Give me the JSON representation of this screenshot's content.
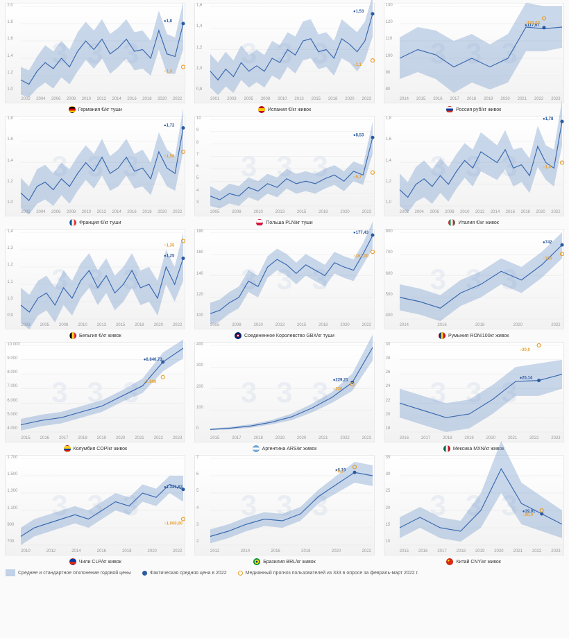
{
  "watermark": "3",
  "legend": {
    "band": "Среднее и стандартное отклонение годовой цены",
    "actual": "Фактическая средняя цена в 2022",
    "forecast": "Медианный прогноз пользователей из 333 в опросе за февраль-март 2022 г."
  },
  "colors": {
    "line": "#3b6bb0",
    "band": "#6b93c9",
    "actual": "#2b5aa0",
    "forecast": "#e8a030",
    "grid": "#e6e6e6",
    "bg_top": "#ffffff",
    "bg_bottom": "#f2f2f2"
  },
  "charts": [
    {
      "title": "Германия €/кг туши",
      "flag_css": "linear-gradient(to bottom, #000 33%, #dd0000 33%, #dd0000 66%, #ffce00 66%)",
      "y_ticks": [
        "1,0",
        "1,2",
        "1,4",
        "1,6",
        "1,8",
        "2,0"
      ],
      "ymin": 1.0,
      "ymax": 2.0,
      "x_labels": [
        "2002",
        "2004",
        "2006",
        "2008",
        "2010",
        "2012",
        "2014",
        "2016",
        "2018",
        "2020",
        "2022"
      ],
      "series": [
        1.15,
        1.1,
        1.25,
        1.35,
        1.28,
        1.4,
        1.3,
        1.48,
        1.6,
        1.5,
        1.62,
        1.45,
        1.52,
        1.62,
        1.48,
        1.5,
        1.4,
        1.72,
        1.45,
        1.42,
        1.8
      ],
      "band_lo": [
        0.98,
        0.95,
        1.05,
        1.12,
        1.05,
        1.18,
        1.1,
        1.25,
        1.38,
        1.28,
        1.4,
        1.22,
        1.3,
        1.4,
        1.26,
        1.28,
        1.2,
        1.5,
        1.22,
        1.22,
        1.5
      ],
      "band_hi": [
        1.3,
        1.26,
        1.42,
        1.55,
        1.48,
        1.6,
        1.5,
        1.7,
        1.82,
        1.72,
        1.85,
        1.68,
        1.75,
        1.85,
        1.7,
        1.72,
        1.6,
        1.95,
        1.68,
        1.64,
        2.05
      ],
      "actual": {
        "x": 20,
        "v": 1.8,
        "label": "1,8"
      },
      "forecast": {
        "x": 20,
        "v": 1.3,
        "label": "1,3"
      }
    },
    {
      "title": "Испания €/кг живок",
      "flag_css": "linear-gradient(to bottom, #c60b1e 25%, #ffc400 25%, #ffc400 75%, #c60b1e 75%)",
      "y_ticks": [
        "0,8",
        "1,0",
        "1,2",
        "1,4",
        "1,6"
      ],
      "ymin": 0.8,
      "ymax": 1.6,
      "x_labels": [
        "2001",
        "2003",
        "2005",
        "2008",
        "2010",
        "2013",
        "2015",
        "2018",
        "2020",
        "2023"
      ],
      "series": [
        1.0,
        0.92,
        1.02,
        0.95,
        1.08,
        1.0,
        1.05,
        1.0,
        1.12,
        1.08,
        1.2,
        1.15,
        1.28,
        1.3,
        1.18,
        1.2,
        1.12,
        1.3,
        1.25,
        1.18,
        1.28,
        1.53
      ],
      "band_lo": [
        0.85,
        0.78,
        0.86,
        0.8,
        0.92,
        0.85,
        0.9,
        0.85,
        0.96,
        0.92,
        1.04,
        0.98,
        1.1,
        1.12,
        1.02,
        1.04,
        0.96,
        1.12,
        1.08,
        1.0,
        1.1,
        1.32
      ],
      "band_hi": [
        1.16,
        1.08,
        1.18,
        1.1,
        1.24,
        1.15,
        1.2,
        1.15,
        1.28,
        1.24,
        1.36,
        1.32,
        1.46,
        1.48,
        1.34,
        1.36,
        1.28,
        1.48,
        1.42,
        1.36,
        1.46,
        1.7
      ],
      "actual": {
        "x": 21,
        "v": 1.53,
        "label": "1,53"
      },
      "forecast": {
        "x": 21,
        "v": 1.1,
        "label": "1,1"
      }
    },
    {
      "title": "Россия руб/кг живок",
      "flag_css": "linear-gradient(to bottom, #fff 33%, #0039a6 33%, #0039a6 66%, #d52b1e 66%)",
      "y_ticks": [
        "80",
        "90",
        "100",
        "110",
        "120",
        "130"
      ],
      "ymin": 80,
      "ymax": 130,
      "x_labels": [
        "2014",
        "2015",
        "2016",
        "2017",
        "2018",
        "2019",
        "2020",
        "2021",
        "2022",
        "2023"
      ],
      "series": [
        100,
        105,
        102,
        95,
        100,
        95,
        100,
        118,
        117,
        118
      ],
      "band_lo": [
        88,
        92,
        88,
        80,
        86,
        82,
        86,
        104,
        104,
        106
      ],
      "band_hi": [
        112,
        118,
        116,
        110,
        114,
        108,
        114,
        132,
        130,
        130
      ],
      "actual": {
        "x": 8,
        "v": 117.67,
        "label": "117,67"
      },
      "forecast": {
        "x": 8,
        "v": 123,
        "label": "123,00"
      }
    },
    {
      "title": "Франция €/кг туши",
      "flag_css": "linear-gradient(to right, #0055a4 33%, #fff 33%, #fff 66%, #ef4135 66%)",
      "y_ticks": [
        "1,0",
        "1,2",
        "1,4",
        "1,6",
        "1,8"
      ],
      "ymin": 1.0,
      "ymax": 1.8,
      "x_labels": [
        "2002",
        "2004",
        "2006",
        "2008",
        "2010",
        "2012",
        "2014",
        "2016",
        "2018",
        "2020",
        "2022"
      ],
      "series": [
        1.12,
        1.05,
        1.18,
        1.22,
        1.15,
        1.25,
        1.18,
        1.3,
        1.4,
        1.32,
        1.45,
        1.3,
        1.35,
        1.45,
        1.32,
        1.35,
        1.25,
        1.5,
        1.35,
        1.3,
        1.72
      ],
      "band_lo": [
        0.98,
        0.92,
        1.02,
        1.06,
        1.0,
        1.1,
        1.02,
        1.14,
        1.24,
        1.16,
        1.28,
        1.14,
        1.18,
        1.28,
        1.16,
        1.18,
        1.1,
        1.32,
        1.18,
        1.14,
        1.5
      ],
      "band_hi": [
        1.26,
        1.18,
        1.34,
        1.38,
        1.3,
        1.4,
        1.34,
        1.46,
        1.56,
        1.48,
        1.62,
        1.46,
        1.52,
        1.62,
        1.48,
        1.52,
        1.4,
        1.68,
        1.52,
        1.46,
        1.9
      ],
      "actual": {
        "x": 20,
        "v": 1.72,
        "label": "1,72"
      },
      "forecast": {
        "x": 20,
        "v": 1.5,
        "label": "1,50"
      }
    },
    {
      "title": "Польша PLN/кг туши",
      "flag_css": "linear-gradient(to bottom, #fff 50%, #dc143c 50%)",
      "y_ticks": [
        "3",
        "4",
        "5",
        "6",
        "7",
        "8",
        "9",
        "10"
      ],
      "ymin": 3,
      "ymax": 10,
      "x_labels": [
        "2005",
        "2008",
        "2010",
        "2013",
        "2015",
        "2018",
        "2020",
        "2023"
      ],
      "series": [
        3.8,
        3.5,
        4.0,
        3.8,
        4.5,
        4.2,
        4.8,
        4.5,
        5.2,
        4.8,
        5.0,
        4.8,
        5.2,
        5.5,
        5.0,
        5.8,
        5.5,
        8.53
      ],
      "band_lo": [
        3.0,
        2.8,
        3.2,
        3.0,
        3.7,
        3.4,
        4.0,
        3.7,
        4.4,
        4.0,
        4.2,
        4.0,
        4.4,
        4.7,
        4.2,
        5.0,
        4.7,
        7.2
      ],
      "band_hi": [
        4.6,
        4.2,
        4.8,
        4.6,
        5.3,
        5.0,
        5.6,
        5.3,
        6.0,
        5.6,
        5.8,
        5.6,
        6.0,
        6.3,
        5.8,
        6.6,
        6.3,
        9.8
      ],
      "actual": {
        "x": 17,
        "v": 8.53,
        "label": "8,53"
      },
      "forecast": {
        "x": 17,
        "v": 5.7,
        "label": "5,7"
      }
    },
    {
      "title": "Италия €/кг живок",
      "flag_css": "linear-gradient(to right, #009246 33%, #fff 33%, #fff 66%, #ce2b37 66%)",
      "y_ticks": [
        "1,0",
        "1,2",
        "1,4",
        "1,6",
        "1,8"
      ],
      "ymin": 1.0,
      "ymax": 1.8,
      "x_labels": [
        "2002",
        "2004",
        "2006",
        "2008",
        "2010",
        "2012",
        "2014",
        "2016",
        "2018",
        "2020",
        "2022"
      ],
      "series": [
        1.15,
        1.08,
        1.2,
        1.25,
        1.18,
        1.28,
        1.2,
        1.32,
        1.42,
        1.35,
        1.5,
        1.45,
        1.4,
        1.52,
        1.35,
        1.38,
        1.28,
        1.55,
        1.4,
        1.35,
        1.78
      ],
      "band_lo": [
        1.0,
        0.94,
        1.04,
        1.08,
        1.02,
        1.12,
        1.04,
        1.16,
        1.26,
        1.18,
        1.32,
        1.28,
        1.24,
        1.34,
        1.18,
        1.22,
        1.12,
        1.36,
        1.24,
        1.18,
        1.56
      ],
      "band_hi": [
        1.3,
        1.22,
        1.36,
        1.42,
        1.34,
        1.44,
        1.36,
        1.48,
        1.58,
        1.52,
        1.68,
        1.62,
        1.56,
        1.7,
        1.52,
        1.54,
        1.44,
        1.74,
        1.56,
        1.52,
        1.98
      ],
      "actual": {
        "x": 20,
        "v": 1.78,
        "label": "1,78"
      },
      "forecast": {
        "x": 20,
        "v": 1.4,
        "label": "1,4"
      }
    },
    {
      "title": "Бельгия €/кг живок",
      "flag_css": "linear-gradient(to right, #000 33%, #fdda24 33%, #fdda24 66%, #ef3340 66%)",
      "y_ticks": [
        "0,9",
        "1,0",
        "1,1",
        "1,2",
        "1,3",
        "1,4"
      ],
      "ymin": 0.9,
      "ymax": 1.4,
      "x_labels": [
        "2003",
        "2005",
        "2008",
        "2010",
        "2013",
        "2015",
        "2018",
        "2020",
        "2022"
      ],
      "series": [
        0.98,
        0.94,
        1.02,
        1.05,
        0.98,
        1.08,
        1.02,
        1.12,
        1.18,
        1.08,
        1.15,
        1.05,
        1.1,
        1.18,
        1.08,
        1.1,
        1.02,
        1.2,
        1.1,
        1.25
      ],
      "band_lo": [
        0.88,
        0.84,
        0.92,
        0.95,
        0.88,
        0.98,
        0.92,
        1.02,
        1.08,
        0.98,
        1.05,
        0.95,
        1.0,
        1.08,
        0.98,
        1.0,
        0.92,
        1.1,
        1.0,
        1.12
      ],
      "band_hi": [
        1.08,
        1.04,
        1.12,
        1.15,
        1.08,
        1.18,
        1.12,
        1.22,
        1.28,
        1.18,
        1.25,
        1.15,
        1.2,
        1.28,
        1.18,
        1.2,
        1.12,
        1.3,
        1.2,
        1.4
      ],
      "actual": {
        "x": 19,
        "v": 1.25,
        "label": "1,25"
      },
      "forecast": {
        "x": 19,
        "v": 1.35,
        "label": "1,35"
      }
    },
    {
      "title": "Соединенное Королевство GBX/кг туши",
      "flag_css": "radial-gradient(circle, #fff 20%, #c8102e 20%, #c8102e 40%, #012169 40%)",
      "y_ticks": [
        "100",
        "120",
        "140",
        "160",
        "180"
      ],
      "ymin": 100,
      "ymax": 180,
      "x_labels": [
        "2005",
        "2008",
        "2010",
        "2013",
        "2015",
        "2018",
        "2020",
        "2022"
      ],
      "series": [
        105,
        108,
        115,
        120,
        135,
        130,
        148,
        155,
        150,
        142,
        150,
        145,
        140,
        152,
        148,
        145,
        160,
        177
      ],
      "band_lo": [
        95,
        98,
        105,
        110,
        125,
        120,
        138,
        145,
        140,
        132,
        140,
        135,
        130,
        142,
        138,
        135,
        150,
        165
      ],
      "band_hi": [
        115,
        118,
        125,
        130,
        145,
        140,
        158,
        165,
        160,
        152,
        160,
        155,
        150,
        162,
        158,
        155,
        170,
        190
      ],
      "actual": {
        "x": 17,
        "v": 177.43,
        "label": "177,43"
      },
      "forecast": {
        "x": 17,
        "v": 162,
        "label": "162,00"
      }
    },
    {
      "title": "Румыния RON/100кг живок",
      "flag_css": "linear-gradient(to right, #002b7f 33%, #fcd116 33%, #fcd116 66%, #ce1126 66%)",
      "y_ticks": [
        "400",
        "500",
        "600",
        "700",
        "800"
      ],
      "ymin": 400,
      "ymax": 800,
      "x_labels": [
        "2014",
        "2016",
        "2018",
        "2020",
        "2022"
      ],
      "series": [
        500,
        480,
        450,
        520,
        560,
        620,
        580,
        650,
        742
      ],
      "band_lo": [
        440,
        420,
        390,
        460,
        500,
        560,
        520,
        590,
        680
      ],
      "band_hi": [
        560,
        540,
        510,
        580,
        620,
        680,
        640,
        710,
        800
      ],
      "actual": {
        "x": 8,
        "v": 742,
        "label": "742"
      },
      "forecast": {
        "x": 8,
        "v": 700,
        "label": "700"
      }
    },
    {
      "title": "Колумбия COP/кг живок",
      "flag_css": "linear-gradient(to bottom, #fcd116 50%, #003893 50%, #003893 75%, #ce1126 75%)",
      "y_ticks": [
        "4.000",
        "5.000",
        "6.000",
        "7.000",
        "8.000",
        "9.000",
        "10.000"
      ],
      "ymin": 4000,
      "ymax": 10000,
      "x_labels": [
        "2015",
        "2016",
        "2017",
        "2018",
        "2019",
        "2020",
        "2021",
        "2022",
        "2023"
      ],
      "series": [
        4500,
        4800,
        5000,
        5400,
        5800,
        6500,
        7200,
        8846,
        9800
      ],
      "band_lo": [
        4100,
        4400,
        4600,
        5000,
        5400,
        6100,
        6700,
        8200,
        9100
      ],
      "band_hi": [
        4900,
        5200,
        5400,
        5800,
        6200,
        6900,
        7700,
        9500,
        10400
      ],
      "actual": {
        "x": 7,
        "v": 8846.73,
        "label": "8.846,73"
      },
      "forecast": {
        "x": 7,
        "v": 7800,
        "label": "7.800"
      }
    },
    {
      "title": "Аргентина ARS/кг живок",
      "flag_css": "linear-gradient(to bottom, #74acdf 33%, #fff 33%, #fff 66%, #74acdf 66%)",
      "y_ticks": [
        "0",
        "100",
        "200",
        "300",
        "400"
      ],
      "ymin": 0,
      "ymax": 400,
      "x_labels": [
        "2015",
        "2017",
        "2018",
        "2019",
        "2020",
        "2021",
        "2022",
        "2023"
      ],
      "series": [
        12,
        18,
        28,
        45,
        70,
        110,
        160,
        229,
        390
      ],
      "band_lo": [
        8,
        12,
        20,
        35,
        55,
        90,
        135,
        190,
        330
      ],
      "band_hi": [
        16,
        24,
        36,
        55,
        85,
        130,
        185,
        270,
        450
      ],
      "actual": {
        "x": 7,
        "v": 229.21,
        "label": "229,21"
      },
      "forecast": {
        "x": 7,
        "v": 220,
        "label": "220"
      }
    },
    {
      "title": "Мексика MXN/кг живок",
      "flag_css": "linear-gradient(to right, #006847 33%, #fff 33%, #fff 66%, #ce1126 66%)",
      "y_ticks": [
        "18",
        "20",
        "22",
        "24",
        "26",
        "28",
        "30"
      ],
      "ymin": 18,
      "ymax": 30,
      "x_labels": [
        "2016",
        "2017",
        "2018",
        "2019",
        "2020",
        "2021",
        "2022",
        "2023"
      ],
      "series": [
        22,
        21,
        20,
        20.5,
        22.5,
        25,
        25.14,
        26
      ],
      "band_lo": [
        20,
        19,
        18,
        18.5,
        20.5,
        23,
        23,
        24
      ],
      "band_hi": [
        24,
        23,
        22,
        22.5,
        24.5,
        27,
        27.5,
        28
      ],
      "actual": {
        "x": 6,
        "v": 25.14,
        "label": "25,14"
      },
      "forecast": {
        "x": 6,
        "v": 30,
        "label": "30,0"
      }
    },
    {
      "title": "Чили CLP/кг живок",
      "flag_css": "linear-gradient(to bottom, #0039a6 50%, #d52b1e 50%)",
      "y_ticks": [
        "700",
        "900",
        "1.100",
        "1.300",
        "1.500",
        "1.700"
      ],
      "ymin": 700,
      "ymax": 1700,
      "x_labels": [
        "2010",
        "2012",
        "2014",
        "2016",
        "2018",
        "2020",
        "2022"
      ],
      "series": [
        800,
        900,
        950,
        1000,
        1050,
        1000,
        1100,
        1200,
        1150,
        1300,
        1250,
        1400,
        1341
      ],
      "band_lo": [
        700,
        800,
        850,
        900,
        950,
        900,
        1000,
        1100,
        1050,
        1200,
        1150,
        1300,
        1200
      ],
      "band_hi": [
        900,
        1000,
        1050,
        1100,
        1150,
        1100,
        1200,
        1300,
        1250,
        1400,
        1350,
        1500,
        1500
      ],
      "actual": {
        "x": 12,
        "v": 1341.83,
        "label": "1.341,83"
      },
      "forecast": {
        "x": 12,
        "v": 1000,
        "label": "1.000,00"
      }
    },
    {
      "title": "Бразилия BRL/кг живок",
      "flag_css": "radial-gradient(circle, #002776 25%, #fedf00 25%, #fedf00 55%, #009b3a 55%)",
      "y_ticks": [
        "2",
        "3",
        "4",
        "5",
        "6",
        "7"
      ],
      "ymin": 2,
      "ymax": 7,
      "x_labels": [
        "2012",
        "2014",
        "2016",
        "2018",
        "2020",
        "2022"
      ],
      "series": [
        2.5,
        2.8,
        3.2,
        3.5,
        3.4,
        3.8,
        4.8,
        5.5,
        6.19,
        6.0
      ],
      "band_lo": [
        2.1,
        2.4,
        2.8,
        3.1,
        3.0,
        3.4,
        4.4,
        5.0,
        5.6,
        5.4
      ],
      "band_hi": [
        2.9,
        3.2,
        3.6,
        3.9,
        3.8,
        4.2,
        5.2,
        6.0,
        6.8,
        6.6
      ],
      "actual": {
        "x": 8,
        "v": 6.19,
        "label": "6,19"
      },
      "forecast": {
        "x": 8,
        "v": 6.5,
        "label": "6,5"
      }
    },
    {
      "title": "Китай CNY/кг живок",
      "flag_css": "radial-gradient(circle at 30% 30%, #ffde00 15%, #de2910 15%)",
      "y_ticks": [
        "10",
        "15",
        "20",
        "25",
        "30",
        "35"
      ],
      "ymin": 10,
      "ymax": 35,
      "x_labels": [
        "2015",
        "2016",
        "2017",
        "2018",
        "2019",
        "2020",
        "2021",
        "2022",
        "2023"
      ],
      "series": [
        15,
        18,
        15,
        14,
        20,
        32,
        22,
        19.01,
        16
      ],
      "band_lo": [
        12,
        15,
        12,
        11,
        15,
        25,
        16,
        14,
        12
      ],
      "band_hi": [
        18,
        21,
        18,
        17,
        25,
        40,
        28,
        24,
        20
      ],
      "actual": {
        "x": 7,
        "v": 19.01,
        "label": "19,01"
      },
      "forecast": {
        "x": 7,
        "v": 20,
        "label": "20,0"
      }
    }
  ]
}
